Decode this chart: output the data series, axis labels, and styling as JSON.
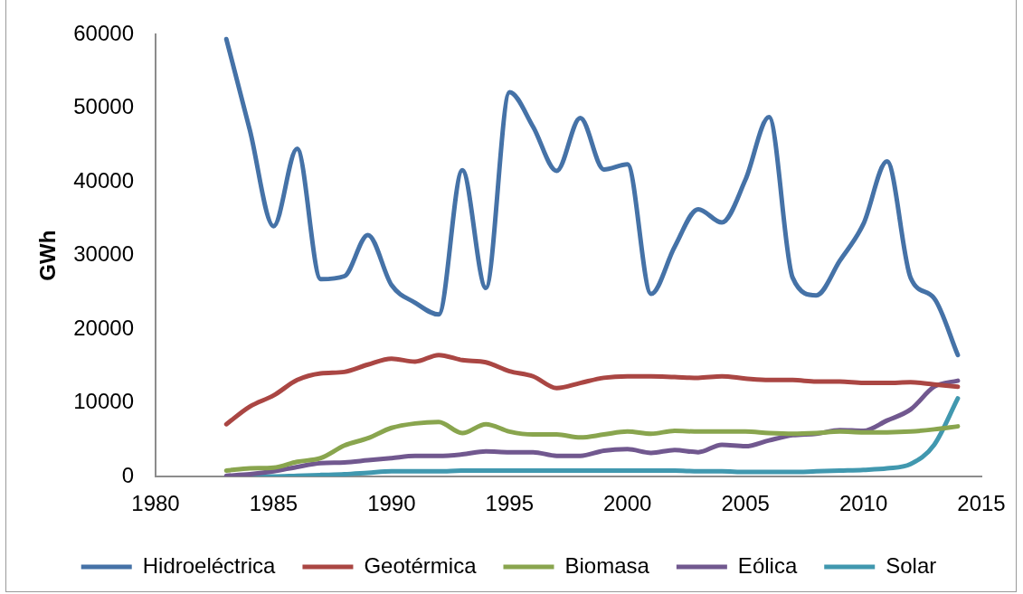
{
  "chart_data": {
    "type": "line",
    "ylabel": "GWh",
    "x": [
      1983,
      1984,
      1985,
      1986,
      1987,
      1988,
      1989,
      1990,
      1991,
      1992,
      1993,
      1994,
      1995,
      1996,
      1997,
      1998,
      1999,
      2000,
      2001,
      2002,
      2003,
      2004,
      2005,
      2006,
      2007,
      2008,
      2009,
      2010,
      2011,
      2012,
      2013,
      2014
    ],
    "xlim": [
      1980,
      2015
    ],
    "xticks": [
      1980,
      1985,
      1990,
      1995,
      2000,
      2005,
      2010,
      2015
    ],
    "ylim": [
      0,
      60000
    ],
    "yticks": [
      0,
      10000,
      20000,
      30000,
      40000,
      50000,
      60000
    ],
    "legend": "bottom",
    "series": [
      {
        "name": "Hidroeléctrica",
        "color": "#4572a7",
        "values": [
          59400,
          47000,
          34000,
          44500,
          26800,
          27200,
          32800,
          26000,
          23600,
          22000,
          41600,
          25600,
          52200,
          47500,
          41500,
          48700,
          41700,
          42400,
          24800,
          31200,
          36300,
          34500,
          40300,
          48800,
          27000,
          24600,
          29300,
          34300,
          42800,
          27000,
          24200,
          16500
        ]
      },
      {
        "name": "Geotérmica",
        "color": "#aa4643",
        "values": [
          7100,
          9500,
          11000,
          13100,
          14000,
          14200,
          15200,
          16000,
          15600,
          16500,
          15800,
          15500,
          14300,
          13600,
          12000,
          12700,
          13400,
          13600,
          13600,
          13500,
          13400,
          13600,
          13300,
          13100,
          13100,
          12900,
          12900,
          12700,
          12700,
          12800,
          12500,
          12200
        ]
      },
      {
        "name": "Biomasa",
        "color": "#89a54e",
        "values": [
          800,
          1100,
          1200,
          2000,
          2500,
          4200,
          5200,
          6600,
          7200,
          7400,
          5900,
          7100,
          6100,
          5700,
          5700,
          5300,
          5700,
          6100,
          5800,
          6200,
          6100,
          6100,
          6100,
          5900,
          5800,
          5900,
          6100,
          6000,
          6000,
          6100,
          6400,
          6800
        ]
      },
      {
        "name": "Eólica",
        "color": "#71588f",
        "values": [
          100,
          300,
          700,
          1300,
          1800,
          1900,
          2200,
          2500,
          2800,
          2800,
          3000,
          3400,
          3300,
          3300,
          2800,
          2800,
          3500,
          3700,
          3200,
          3600,
          3300,
          4300,
          4100,
          4900,
          5600,
          5800,
          6300,
          6200,
          7600,
          9100,
          12200,
          13000
        ]
      },
      {
        "name": "Solar",
        "color": "#4198af",
        "values": [
          0,
          0,
          0,
          100,
          200,
          300,
          500,
          700,
          700,
          700,
          800,
          800,
          800,
          800,
          800,
          800,
          800,
          800,
          800,
          800,
          700,
          700,
          600,
          600,
          600,
          700,
          800,
          900,
          1100,
          1700,
          4300,
          10600
        ]
      }
    ]
  }
}
